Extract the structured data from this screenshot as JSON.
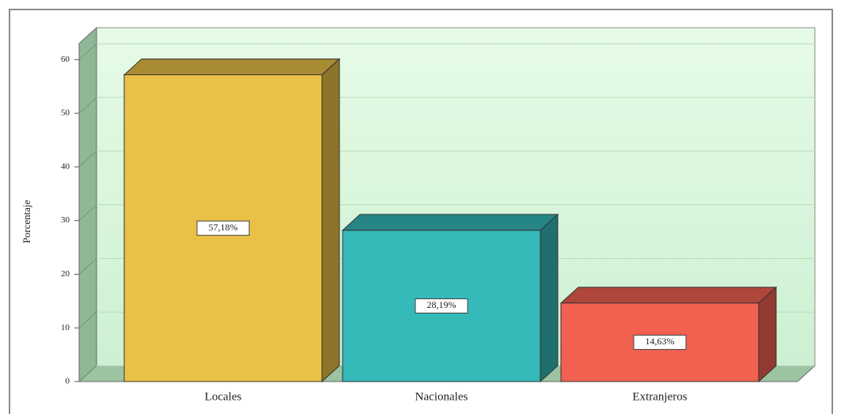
{
  "chart_data": {
    "type": "bar3d",
    "y_label": "Porcentaje",
    "categories": [
      "Locales",
      "Nacionales",
      "Extranjeros"
    ],
    "values": [
      57.18,
      28.19,
      14.63
    ],
    "value_labels": [
      "57,18%",
      "28,19%",
      "14,63%"
    ],
    "colors": [
      "#e9c146",
      "#35b9b9",
      "#f2614f"
    ],
    "ylim": [
      0,
      63
    ],
    "yticks": [
      0,
      10,
      20,
      30,
      40,
      50,
      60
    ],
    "grid": true
  }
}
